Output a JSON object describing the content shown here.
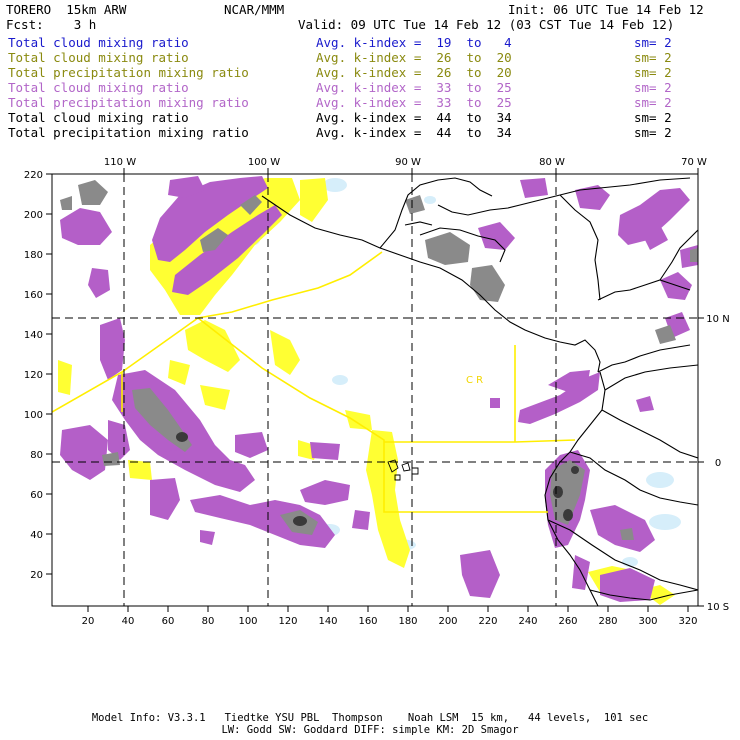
{
  "header": {
    "model": "TORERO  15km ARW",
    "org": "NCAR/MMM",
    "init": "Init: 06 UTC Tue 14 Feb 12",
    "fcst": "Fcst:    3 h",
    "valid": "Valid: 09 UTC Tue 14 Feb 12 (03 CST Tue 14 Feb 12)"
  },
  "legend": [
    {
      "field": "Total cloud mixing ratio",
      "idx": "Avg. k-index =  19  to   4",
      "sm": "sm= 2",
      "color": "#1a1acc"
    },
    {
      "field": "Total cloud mixing ratio",
      "idx": "Avg. k-index =  26  to  20",
      "sm": "sm= 2",
      "color": "#8a8a10"
    },
    {
      "field": "Total precipitation mixing ratio",
      "idx": "Avg. k-index =  26  to  20",
      "sm": "sm= 2",
      "color": "#8a8a10"
    },
    {
      "field": "Total cloud mixing ratio",
      "idx": "Avg. k-index =  33  to  25",
      "sm": "sm= 2",
      "color": "#b266c8"
    },
    {
      "field": "Total precipitation mixing ratio",
      "idx": "Avg. k-index =  33  to  25",
      "sm": "sm= 2",
      "color": "#b266c8"
    },
    {
      "field": "Total cloud mixing ratio",
      "idx": "Avg. k-index =  44  to  34",
      "sm": "sm= 2",
      "color": "#000000"
    },
    {
      "field": "Total precipitation mixing ratio",
      "idx": "Avg. k-index =  44  to  34",
      "sm": "sm= 2",
      "color": "#000000"
    }
  ],
  "axes": {
    "top": [
      "110 W",
      "100 W",
      "90 W",
      "80 W",
      "70 W"
    ],
    "right": [
      "10 N",
      "0",
      "10 S"
    ],
    "left": [
      "220",
      "200",
      "180",
      "160",
      "140",
      "120",
      "100",
      "80",
      "60",
      "40",
      "20"
    ],
    "bottom": [
      "20",
      "40",
      "60",
      "80",
      "100",
      "120",
      "140",
      "160",
      "180",
      "200",
      "220",
      "240",
      "260",
      "280",
      "300",
      "320"
    ]
  },
  "map_labels": {
    "cr": "C   R"
  },
  "footer": {
    "line1": "Model Info: V3.3.1   Tiedtke YSU PBL  Thompson    Noah LSM  15 km,   44 levels,  101 sec",
    "line2": "LW: Godd SW: Goddard DIFF: simple KM: 2D Smagor"
  },
  "colors": {
    "yellow": "#ffff33",
    "purple": "#b45fc8",
    "lightblue": "#d6eefa",
    "gray": "#8a8a8a",
    "dark": "#3a3a3a",
    "border": "#ffee00"
  }
}
